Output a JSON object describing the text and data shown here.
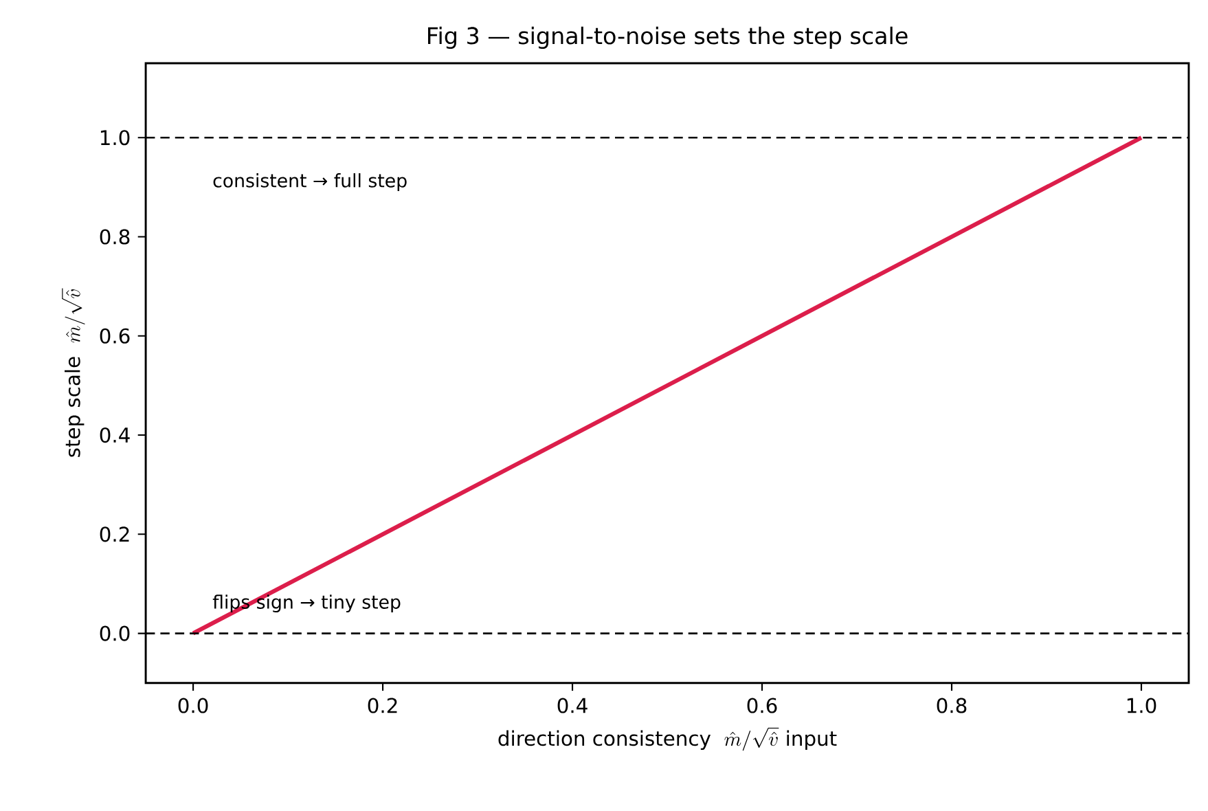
{
  "chart_data": {
    "type": "line",
    "title": "Fig 3 — signal-to-noise sets the step scale",
    "xlabel": "\\text{direction consistency}\\ \\ \\hat{m}/\\sqrt{\\hat{v}}\\ \\text{input}",
    "ylabel": "\\text{step scale}\\ \\ \\hat{m}/\\sqrt{\\hat{v}}",
    "x": [
      0,
      1
    ],
    "series": [
      {
        "color": "#dc1e4b",
        "values": [
          0,
          1
        ]
      }
    ],
    "xlim": [
      -0.05,
      1.05
    ],
    "ylim": [
      -0.1,
      1.15
    ],
    "xticks": [
      {
        "value": 0,
        "label": "0.0"
      },
      {
        "value": 0.2,
        "label": "0.2"
      },
      {
        "value": 0.4,
        "label": "0.4"
      },
      {
        "value": 0.6,
        "label": "0.6"
      },
      {
        "value": 0.8,
        "label": "0.8"
      },
      {
        "value": 1,
        "label": "1.0"
      }
    ],
    "yticks": [
      {
        "value": 0,
        "label": "0.0"
      },
      {
        "value": 0.2,
        "label": "0.2"
      },
      {
        "value": 0.4,
        "label": "0.4"
      },
      {
        "value": 0.6,
        "label": "0.6"
      },
      {
        "value": 0.8,
        "label": "0.8"
      },
      {
        "value": 1,
        "label": "1.0"
      }
    ],
    "ref_lines": [
      {
        "axis": "y",
        "value": 1,
        "line_style": "dashed",
        "color": "#000000"
      },
      {
        "axis": "y",
        "value": 0,
        "line_style": "dashed",
        "color": "#000000"
      }
    ],
    "annotations": [
      "consistent → full step",
      "flips sign → tiny step"
    ],
    "grid": false,
    "marker": "none",
    "line_style": "solid"
  }
}
